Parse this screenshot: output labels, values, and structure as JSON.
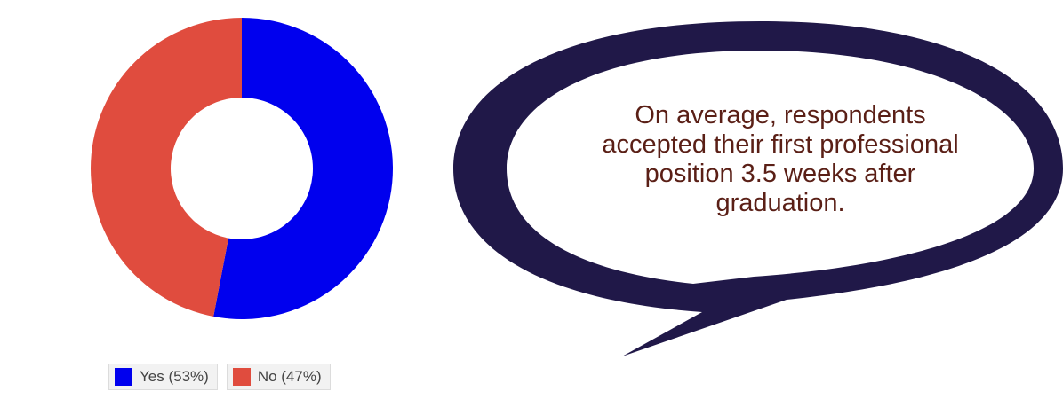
{
  "chart_data": {
    "type": "pie",
    "donut": true,
    "series": [
      {
        "name": "Yes (53%)",
        "value": 53,
        "color": "#0000ee"
      },
      {
        "name": "No (47%)",
        "value": 47,
        "color": "#e04c3e"
      }
    ],
    "legend": "bottom"
  },
  "callout": {
    "lines": [
      "On average, respondents",
      "accepted their first professional",
      "position 3.5 weeks after",
      "graduation."
    ],
    "outline_color": "#201848",
    "text_color": "#5a1f16"
  }
}
